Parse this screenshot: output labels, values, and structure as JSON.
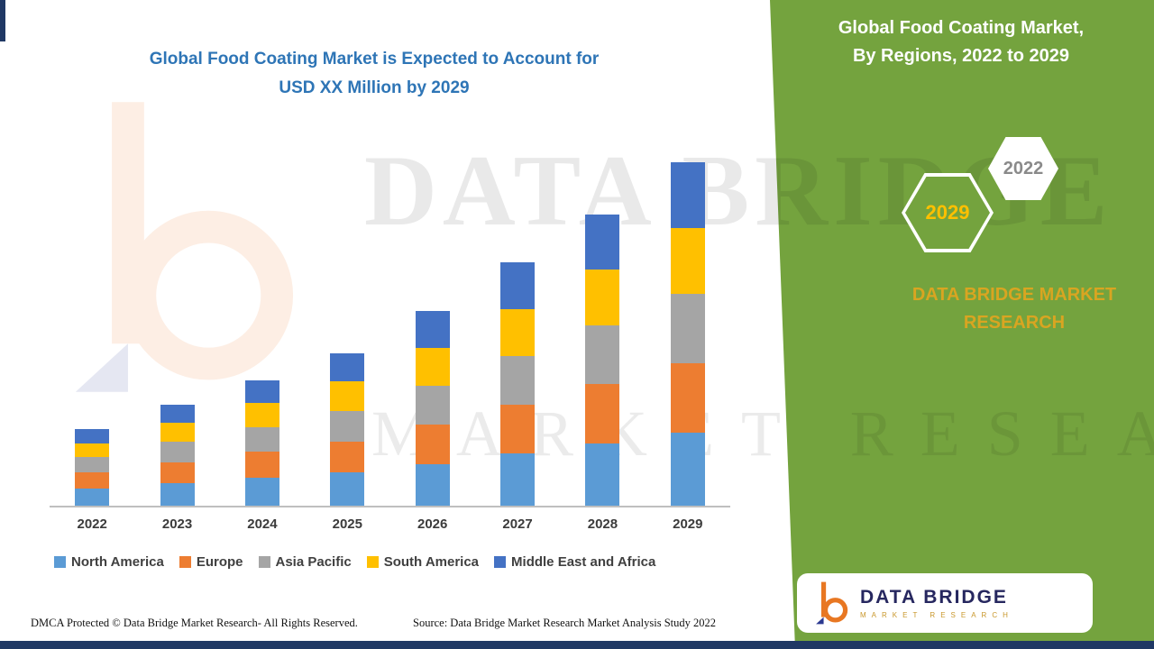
{
  "page": {
    "background": "#FFFFFF",
    "panel_green": "#74A33E",
    "accent_navy": "#1F3864",
    "title_blue": "#2E75B6"
  },
  "watermark": {
    "line1": "DATA BRIDGE",
    "line2": "MARKET RESEARCH"
  },
  "chart": {
    "title_line1": "Global Food Coating Market is Expected to Account for",
    "title_line2": "USD XX Million by 2029"
  },
  "chart_data": {
    "type": "bar",
    "stacked": true,
    "title": "Global Food Coating Market is Expected to Account for USD XX Million by 2029",
    "categories": [
      "2022",
      "2023",
      "2024",
      "2025",
      "2026",
      "2027",
      "2028",
      "2029"
    ],
    "series": [
      {
        "name": "North America",
        "color": "#5B9BD5",
        "values": [
          0.5,
          0.65,
          0.8,
          0.95,
          1.2,
          1.5,
          1.8,
          2.1
        ]
      },
      {
        "name": "Europe",
        "color": "#ED7D31",
        "values": [
          0.45,
          0.6,
          0.75,
          0.9,
          1.15,
          1.4,
          1.7,
          2.0
        ]
      },
      {
        "name": "Asia Pacific",
        "color": "#A5A5A5",
        "values": [
          0.45,
          0.6,
          0.72,
          0.88,
          1.1,
          1.4,
          1.7,
          2.0
        ]
      },
      {
        "name": "South America",
        "color": "#FFC000",
        "values": [
          0.4,
          0.55,
          0.7,
          0.85,
          1.1,
          1.35,
          1.6,
          1.9
        ]
      },
      {
        "name": "Middle East and Africa",
        "color": "#4472C4",
        "values": [
          0.4,
          0.5,
          0.63,
          0.8,
          1.05,
          1.35,
          1.6,
          1.9
        ]
      }
    ],
    "xlabel": "",
    "ylabel": "",
    "y_axis_shown": false,
    "value_note": "Relative segment heights estimated from pixels; no y-axis scale shown (values undisclosed, USD XX Million)",
    "legend_position": "bottom"
  },
  "panel": {
    "title_line1": "Global Food Coating Market,",
    "title_line2": "By Regions, 2022 to 2029",
    "hexagon_back_label": "2029",
    "hexagon_front_label": "2022",
    "brand_line1": "DATA BRIDGE MARKET",
    "brand_line2": "RESEARCH"
  },
  "logo_card": {
    "brand": "DATA BRIDGE",
    "subtitle": "MARKET RESEARCH"
  },
  "footer": {
    "dmca": "DMCA Protected © Data Bridge Market Research- All Rights Reserved.",
    "source": "Source: Data Bridge Market Research Market Analysis Study 2022"
  }
}
